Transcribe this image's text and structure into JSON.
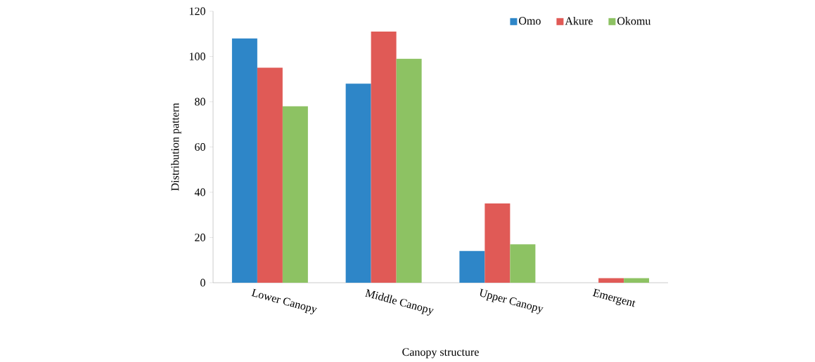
{
  "chart_data": {
    "type": "bar",
    "xlabel": "Canopy structure",
    "ylabel": "Distribution pattern",
    "categories": [
      "Lower Canopy",
      "Middle Canopy",
      "Upper Canopy",
      "Emergent"
    ],
    "series": [
      {
        "name": "Omo",
        "color": "#2e86c8",
        "values": [
          108,
          88,
          14,
          0
        ]
      },
      {
        "name": "Akure",
        "color": "#e05a56",
        "values": [
          95,
          111,
          35,
          2
        ]
      },
      {
        "name": "Okomu",
        "color": "#8dc263",
        "values": [
          78,
          99,
          17,
          2
        ]
      }
    ],
    "ylim": [
      0,
      120
    ],
    "yticks": [
      0,
      20,
      40,
      60,
      80,
      100,
      120
    ],
    "grid": false,
    "legend": "top right"
  }
}
